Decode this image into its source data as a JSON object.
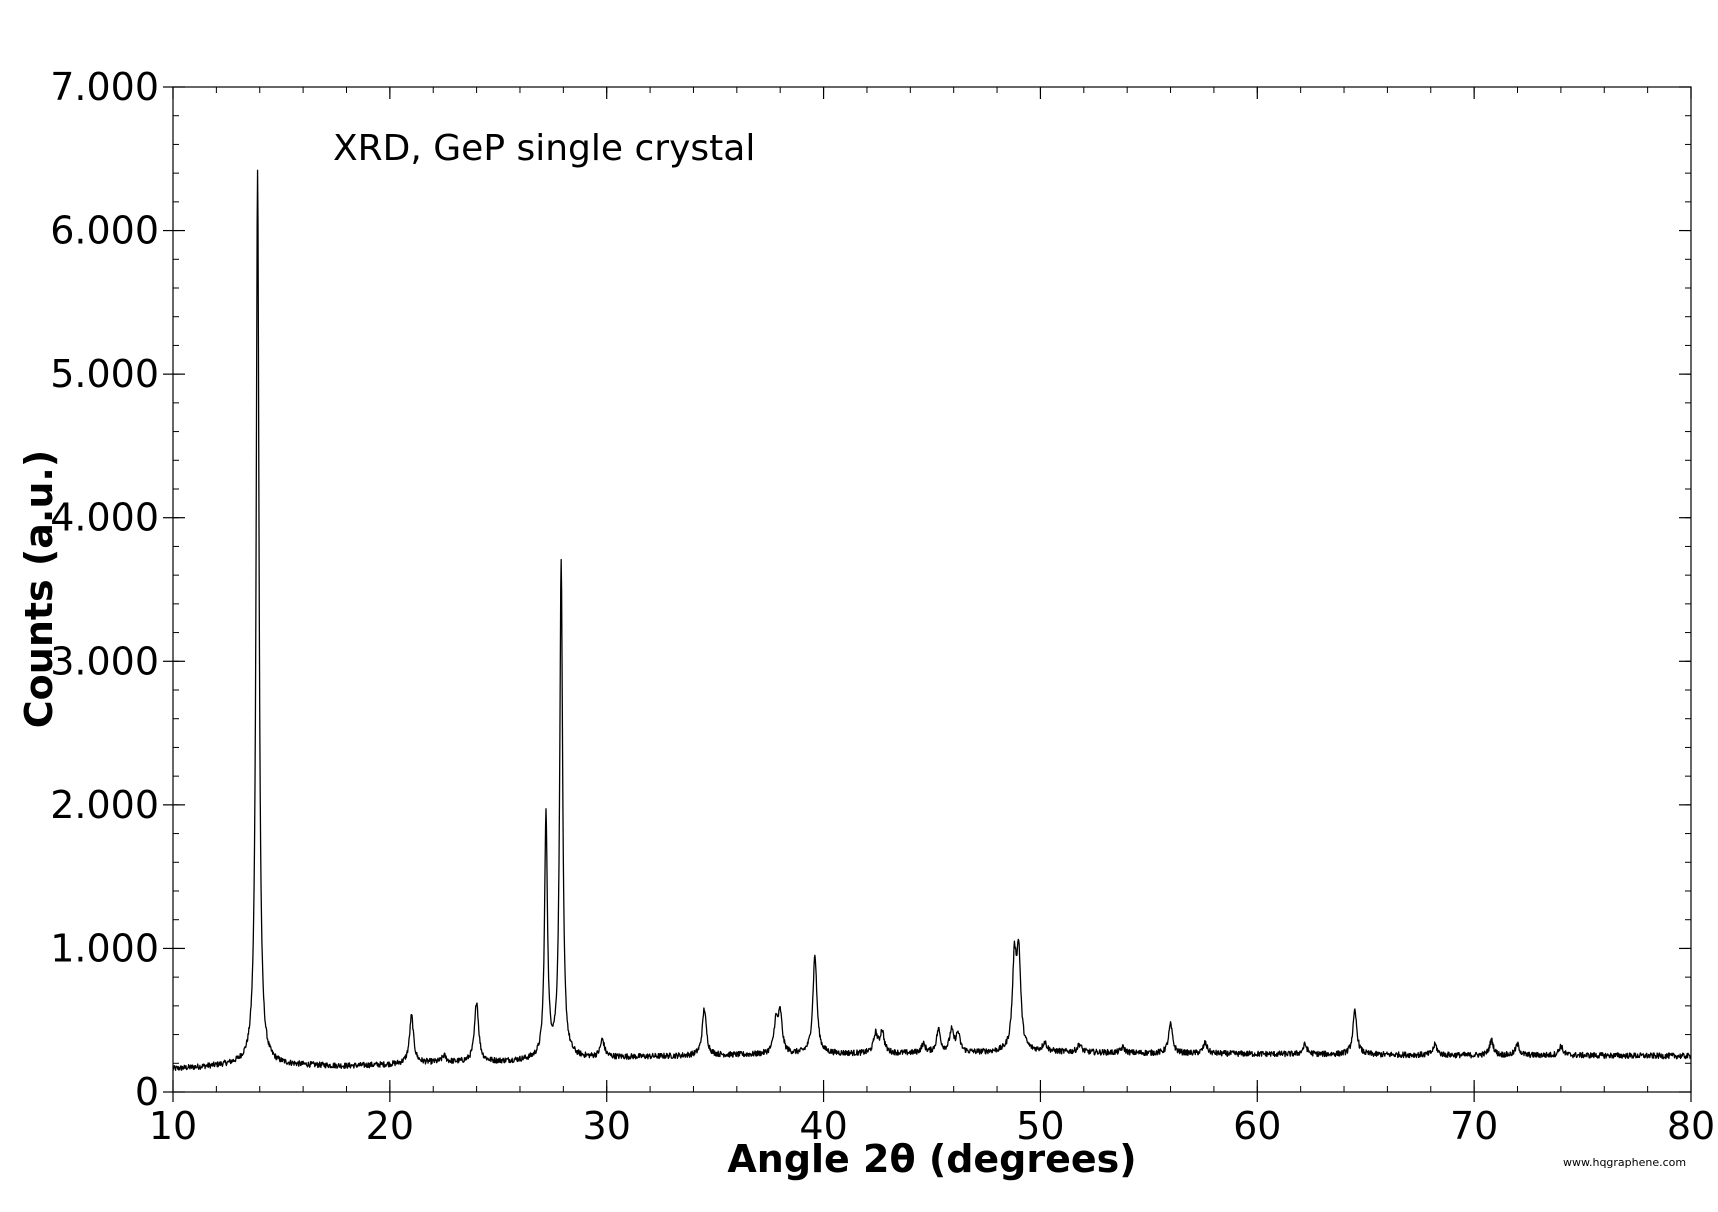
{
  "chart_data": {
    "type": "line",
    "xlabel": "Angle 2θ (degrees)",
    "ylabel": "Counts (a.u.)",
    "annotation": "XRD, GeP single crystal",
    "xlim": [
      10,
      80
    ],
    "ylim": [
      0,
      7000
    ],
    "xticks": [
      10,
      20,
      30,
      40,
      50,
      60,
      70,
      80
    ],
    "xtick_labels": [
      "10",
      "20",
      "30",
      "40",
      "50",
      "60",
      "70",
      "80"
    ],
    "yticks": [
      0,
      1000,
      2000,
      3000,
      4000,
      5000,
      6000,
      7000
    ],
    "ytick_labels": [
      "0",
      "1.000",
      "2.000",
      "3.000",
      "4.000",
      "5.000",
      "6.000",
      "7.000"
    ],
    "grid": false,
    "line_color": "#000000",
    "baseline": [
      [
        10,
        160
      ],
      [
        13,
        190
      ],
      [
        14.5,
        190
      ],
      [
        18,
        180
      ],
      [
        20,
        190
      ],
      [
        22,
        205
      ],
      [
        25,
        210
      ],
      [
        28,
        230
      ],
      [
        30,
        240
      ],
      [
        35,
        255
      ],
      [
        40,
        265
      ],
      [
        45,
        270
      ],
      [
        50,
        280
      ],
      [
        55,
        270
      ],
      [
        60,
        265
      ],
      [
        65,
        260
      ],
      [
        70,
        255
      ],
      [
        75,
        255
      ],
      [
        80,
        250
      ]
    ],
    "peaks": [
      {
        "x": 13.9,
        "y": 6420
      },
      {
        "x": 21.0,
        "y": 530
      },
      {
        "x": 22.5,
        "y": 250
      },
      {
        "x": 24.0,
        "y": 630
      },
      {
        "x": 27.2,
        "y": 1910
      },
      {
        "x": 27.9,
        "y": 3680
      },
      {
        "x": 29.8,
        "y": 360
      },
      {
        "x": 34.5,
        "y": 580
      },
      {
        "x": 37.8,
        "y": 470
      },
      {
        "x": 38.0,
        "y": 530
      },
      {
        "x": 39.6,
        "y": 950
      },
      {
        "x": 42.4,
        "y": 400
      },
      {
        "x": 42.7,
        "y": 420
      },
      {
        "x": 44.6,
        "y": 330
      },
      {
        "x": 45.3,
        "y": 430
      },
      {
        "x": 45.9,
        "y": 420
      },
      {
        "x": 46.2,
        "y": 400
      },
      {
        "x": 48.8,
        "y": 880
      },
      {
        "x": 49.0,
        "y": 920
      },
      {
        "x": 50.2,
        "y": 340
      },
      {
        "x": 51.8,
        "y": 330
      },
      {
        "x": 53.8,
        "y": 310
      },
      {
        "x": 56.0,
        "y": 470
      },
      {
        "x": 57.6,
        "y": 340
      },
      {
        "x": 62.2,
        "y": 330
      },
      {
        "x": 64.5,
        "y": 560
      },
      {
        "x": 68.2,
        "y": 330
      },
      {
        "x": 70.8,
        "y": 360
      },
      {
        "x": 72.0,
        "y": 330
      },
      {
        "x": 74.0,
        "y": 320
      }
    ]
  },
  "watermark": "www.hqgraphene.com"
}
